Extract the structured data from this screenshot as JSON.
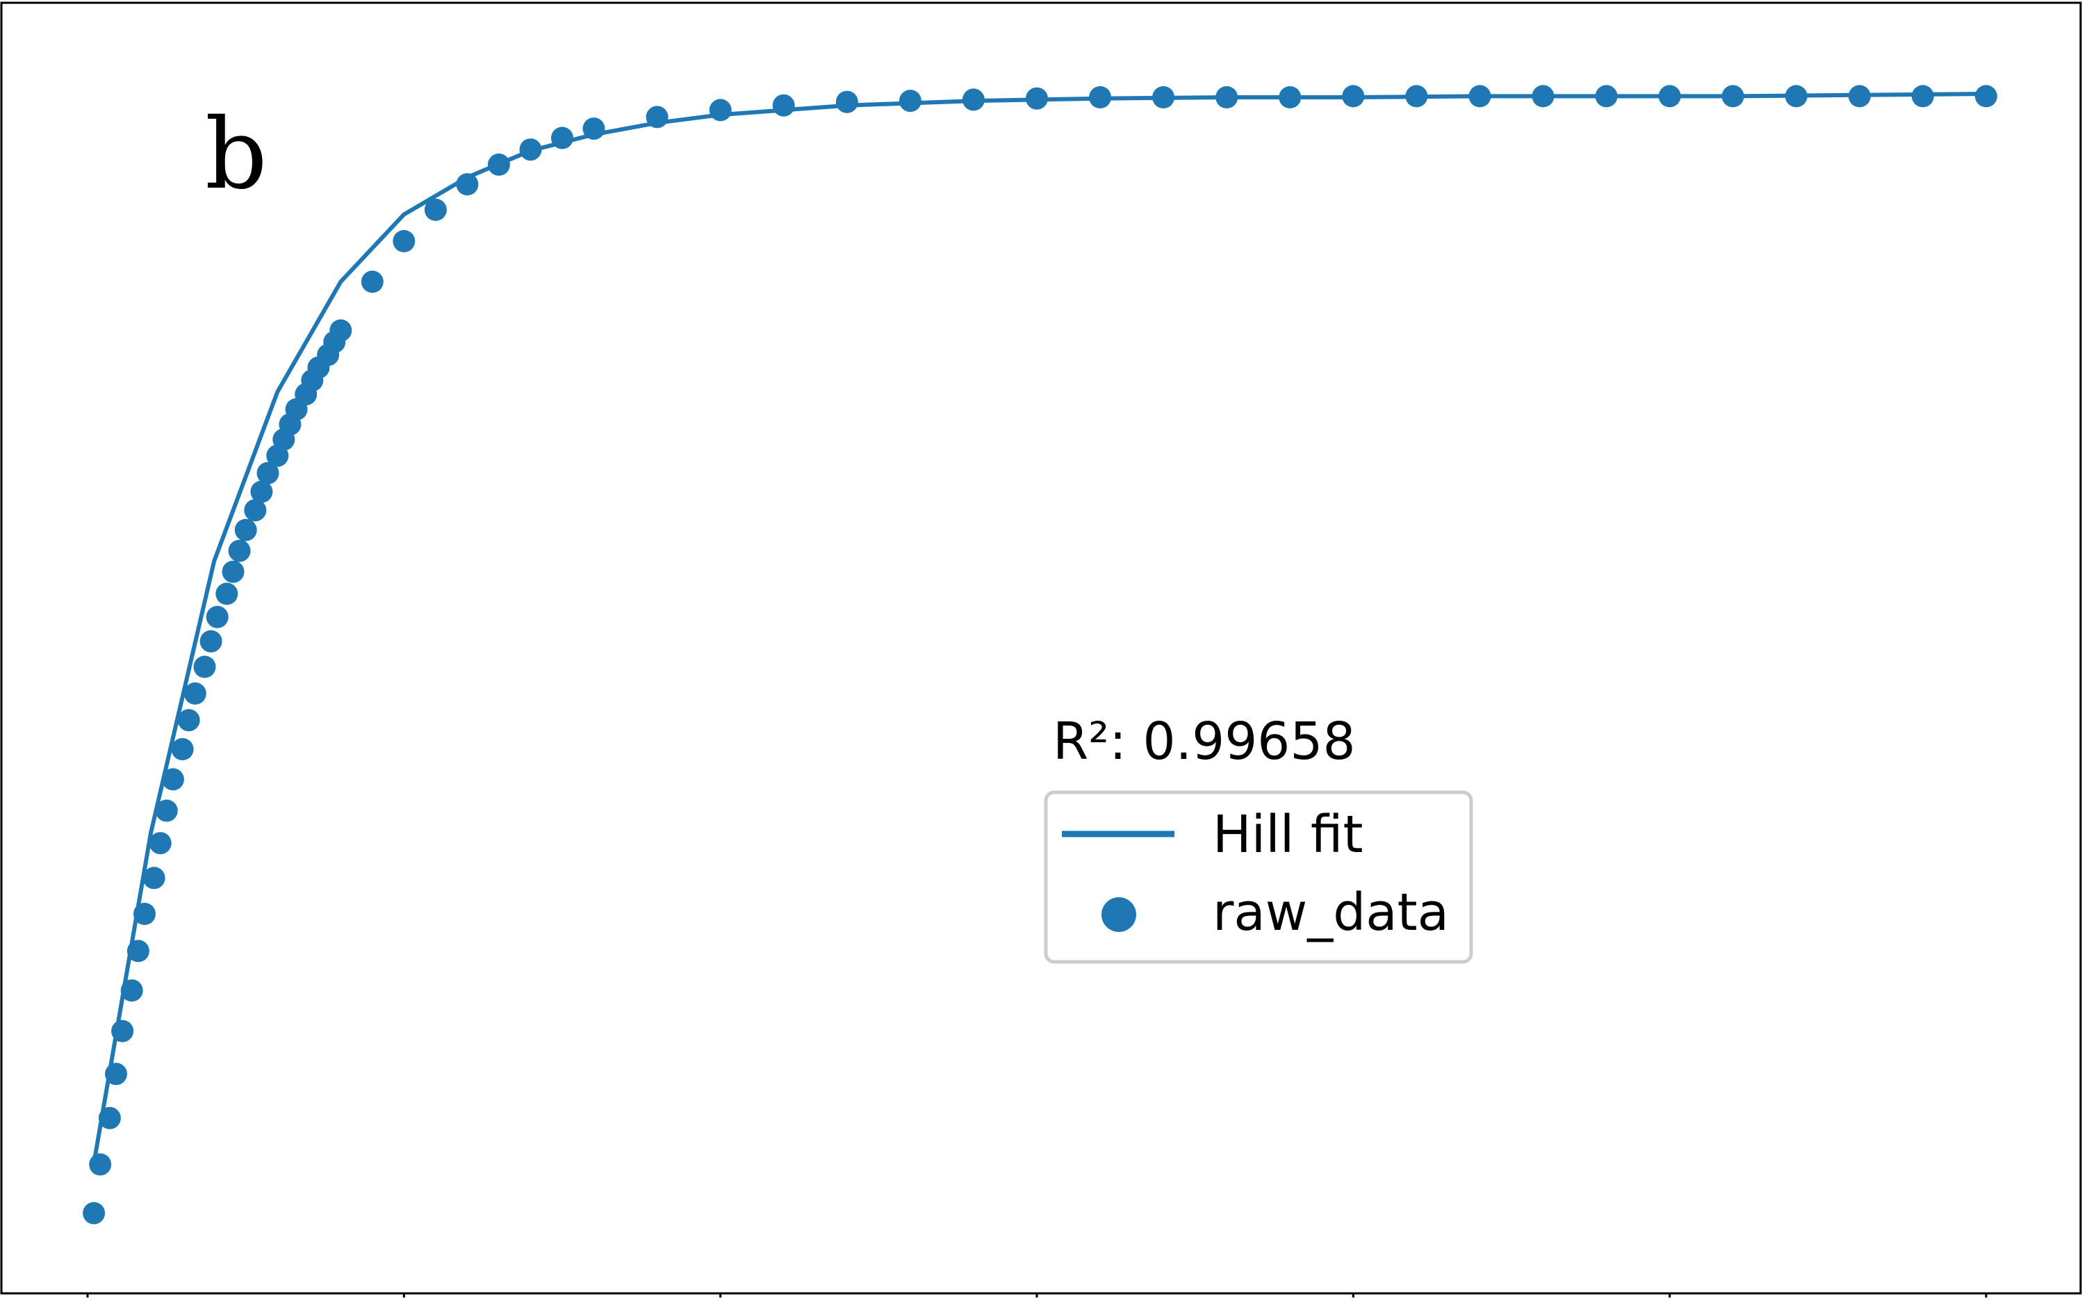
{
  "chart_data": {
    "type": "scatter",
    "panel_label": "b",
    "annotation": "R²: 0.99658",
    "xlim": [
      0,
      6
    ],
    "ylim": [
      0,
      1
    ],
    "x_tick_count": 7,
    "tick_labels_visible": false,
    "grid": false,
    "legend_position": "center-right",
    "colors": {
      "series": "#1f77b4",
      "axes": "#000000",
      "legend_border": "#cccccc"
    },
    "series": [
      {
        "name": "Hill fit",
        "kind": "line",
        "x": [
          0.02,
          0.2,
          0.4,
          0.6,
          0.8,
          1.0,
          1.2,
          1.4,
          1.6,
          1.8,
          2.0,
          2.4,
          2.8,
          3.2,
          3.6,
          4.0,
          4.4,
          4.8,
          5.2,
          5.6,
          6.0
        ],
        "y": [
          0.06,
          0.345,
          0.579,
          0.725,
          0.82,
          0.878,
          0.91,
          0.933,
          0.947,
          0.957,
          0.964,
          0.972,
          0.976,
          0.978,
          0.979,
          0.979,
          0.98,
          0.98,
          0.98,
          0.981,
          0.982
        ]
      },
      {
        "name": "raw_data",
        "kind": "scatter",
        "x": [
          0.02,
          0.04,
          0.07,
          0.09,
          0.11,
          0.14,
          0.16,
          0.18,
          0.21,
          0.23,
          0.25,
          0.27,
          0.3,
          0.32,
          0.34,
          0.37,
          0.39,
          0.41,
          0.44,
          0.46,
          0.48,
          0.5,
          0.53,
          0.55,
          0.57,
          0.6,
          0.62,
          0.64,
          0.66,
          0.69,
          0.71,
          0.73,
          0.76,
          0.78,
          0.8,
          0.9,
          1.0,
          1.1,
          1.2,
          1.3,
          1.4,
          1.5,
          1.6,
          1.8,
          2.0,
          2.2,
          2.4,
          2.6,
          2.8,
          3.0,
          3.2,
          3.4,
          3.6,
          3.8,
          4.0,
          4.2,
          4.4,
          4.6,
          4.8,
          5.0,
          5.2,
          5.4,
          5.6,
          5.8,
          6.0
        ],
        "y": [
          0.017,
          0.059,
          0.099,
          0.137,
          0.174,
          0.209,
          0.243,
          0.275,
          0.306,
          0.336,
          0.364,
          0.391,
          0.417,
          0.442,
          0.465,
          0.488,
          0.51,
          0.531,
          0.551,
          0.57,
          0.588,
          0.606,
          0.623,
          0.639,
          0.655,
          0.67,
          0.684,
          0.697,
          0.71,
          0.723,
          0.735,
          0.746,
          0.757,
          0.768,
          0.778,
          0.82,
          0.855,
          0.882,
          0.904,
          0.921,
          0.934,
          0.944,
          0.952,
          0.962,
          0.968,
          0.972,
          0.975,
          0.976,
          0.977,
          0.978,
          0.979,
          0.979,
          0.979,
          0.979,
          0.98,
          0.98,
          0.98,
          0.98,
          0.98,
          0.98,
          0.98,
          0.98,
          0.98,
          0.98,
          0.98
        ]
      }
    ]
  }
}
